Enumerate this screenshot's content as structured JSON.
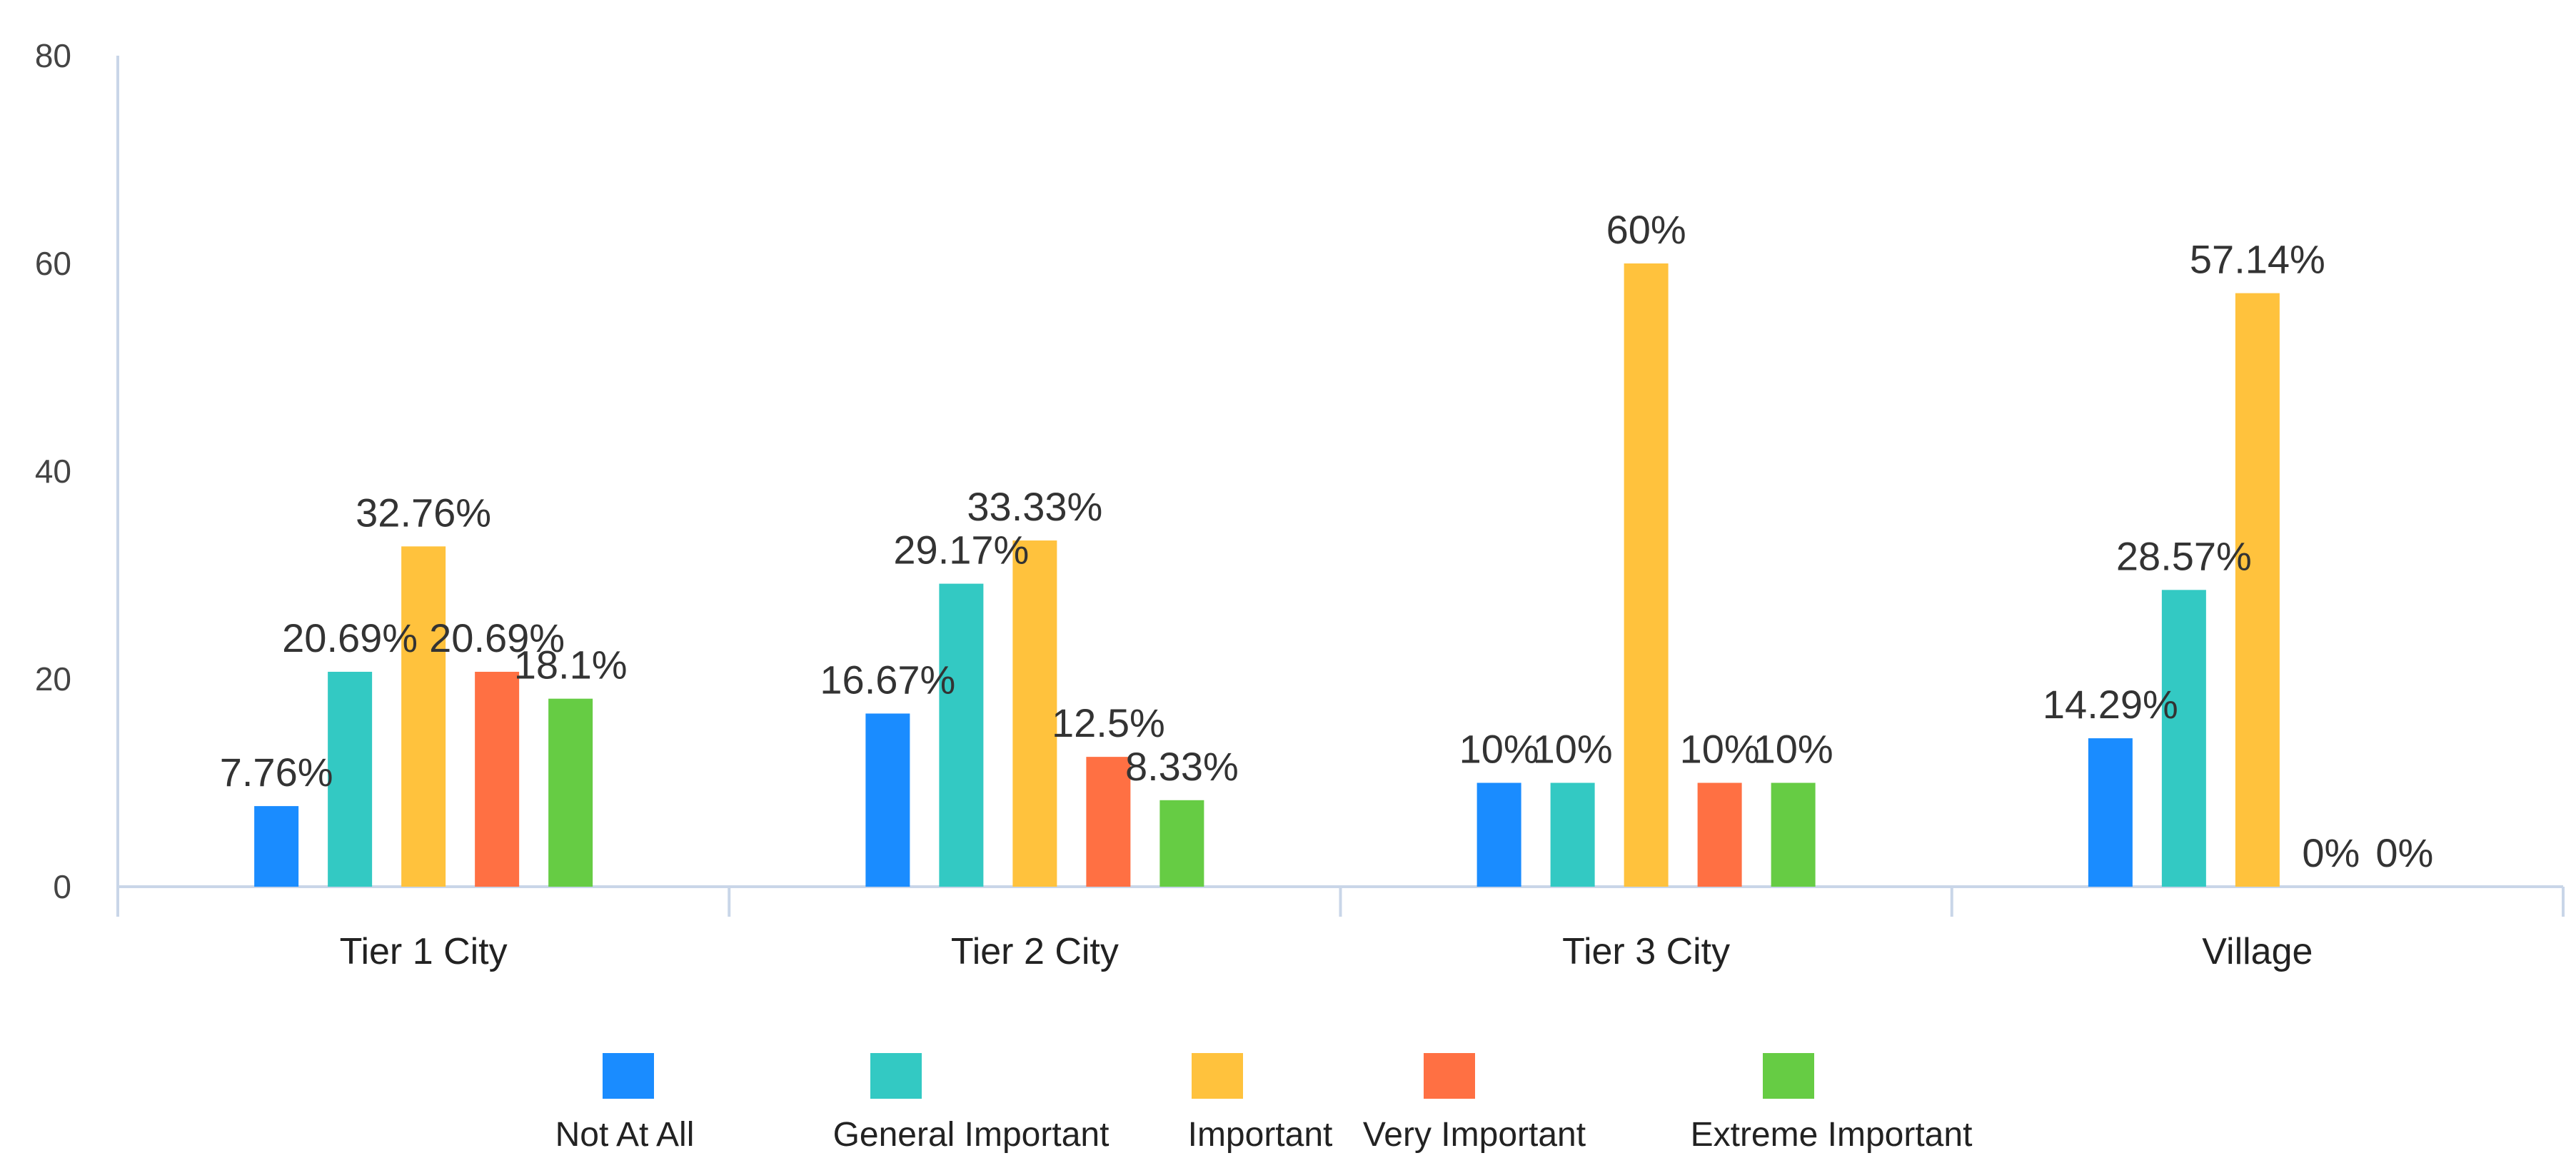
{
  "chart_data": {
    "type": "bar",
    "title": "",
    "xlabel": "",
    "ylabel": "",
    "ylim": [
      0,
      80
    ],
    "yticks": [
      0,
      20,
      40,
      60,
      80
    ],
    "grid": false,
    "legend_position": "bottom",
    "categories": [
      "Tier 1 City",
      "Tier 2 City",
      "Tier 3 City",
      "Village"
    ],
    "series": [
      {
        "name": "Not At All",
        "color": "#1a8cff",
        "values": [
          7.76,
          16.67,
          10,
          14.29
        ],
        "labels": [
          "7.76%",
          "16.67%",
          "10%",
          "14.29%"
        ]
      },
      {
        "name": "General Important",
        "color": "#33c9c3",
        "values": [
          20.69,
          29.17,
          10,
          28.57
        ],
        "labels": [
          "20.69%",
          "29.17%",
          "10%",
          "28.57%"
        ]
      },
      {
        "name": "Important",
        "color": "#ffc23d",
        "values": [
          32.76,
          33.33,
          60,
          57.14
        ],
        "labels": [
          "32.76%",
          "33.33%",
          "60%",
          "57.14%"
        ]
      },
      {
        "name": "Very Important",
        "color": "#ff7043",
        "values": [
          20.69,
          12.5,
          10,
          0
        ],
        "labels": [
          "20.69%",
          "12.5%",
          "10%",
          "0%"
        ]
      },
      {
        "name": "Extreme Important",
        "color": "#66cc44",
        "values": [
          18.1,
          8.33,
          10,
          0
        ],
        "labels": [
          "18.1%",
          "8.33%",
          "10%",
          "0%"
        ]
      }
    ]
  }
}
